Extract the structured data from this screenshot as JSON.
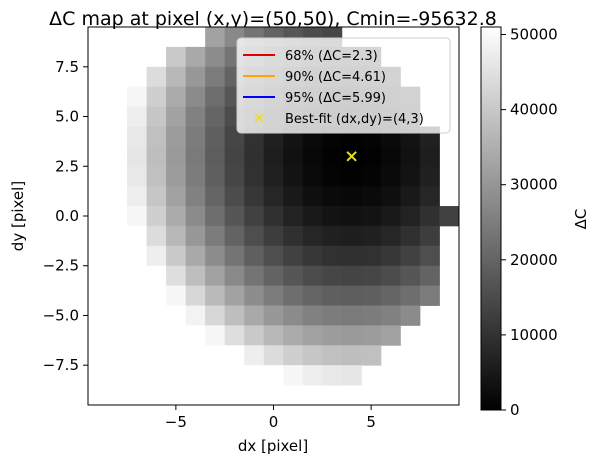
{
  "chart_data": {
    "type": "heatmap",
    "title": "ΔC map at pixel (x,y)=(50,50), Cmin=-95632.8",
    "xlabel": "dx [pixel]",
    "ylabel": "dy [pixel]",
    "xlim": [
      -9.5,
      9.5
    ],
    "ylim": [
      -9.5,
      9.5
    ],
    "x_ticks": [
      {
        "value": -5,
        "label": "−5"
      },
      {
        "value": 0,
        "label": "0"
      },
      {
        "value": 5,
        "label": "5"
      }
    ],
    "y_ticks": [
      {
        "value": 7.5,
        "label": "7.5"
      },
      {
        "value": 5.0,
        "label": "5.0"
      },
      {
        "value": 2.5,
        "label": "2.5"
      },
      {
        "value": 0.0,
        "label": "0.0"
      },
      {
        "value": -2.5,
        "label": "−2.5"
      },
      {
        "value": -5.0,
        "label": "−5.0"
      },
      {
        "value": -7.5,
        "label": "−7.5"
      }
    ],
    "colormap": "gray",
    "color_range": [
      0,
      51000
    ],
    "colorbar_label": "ΔC",
    "colorbar_ticks": [
      {
        "value": 0,
        "label": "0"
      },
      {
        "value": 10000,
        "label": "10000"
      },
      {
        "value": 20000,
        "label": "20000"
      },
      {
        "value": 30000,
        "label": "30000"
      },
      {
        "value": 40000,
        "label": "40000"
      },
      {
        "value": 50000,
        "label": "50000"
      }
    ],
    "grid": false,
    "legend_position": "upper-right",
    "best_fit": {
      "dx": 4,
      "dy": 3,
      "color": "#e8e020"
    },
    "legend": [
      {
        "label": "68% (ΔC=2.3)",
        "color": "#e00000",
        "kind": "line"
      },
      {
        "label": "90% (ΔC=4.61)",
        "color": "#ffa500",
        "kind": "line"
      },
      {
        "label": "95% (ΔC=5.99)",
        "color": "#0000ff",
        "kind": "line"
      },
      {
        "label": "Best-fit (dx,dy)=(4,3)",
        "color": "#e8e020",
        "kind": "marker"
      }
    ],
    "footprint": {
      "rows": [
        {
          "dy": 9,
          "dx": [
            -3,
            3
          ]
        },
        {
          "dy": 8,
          "dx": [
            -5,
            5
          ]
        },
        {
          "dy": 7,
          "dx": [
            -6,
            6
          ]
        },
        {
          "dy": 6,
          "dx": [
            -7,
            7
          ]
        },
        {
          "dy": 5,
          "dx": [
            -7,
            7
          ]
        },
        {
          "dy": 4,
          "dx": [
            -8,
            8
          ]
        },
        {
          "dy": 3,
          "dx": [
            -8,
            8
          ]
        },
        {
          "dy": 2,
          "dx": [
            -8,
            8
          ]
        },
        {
          "dy": 1,
          "dx": [
            -8,
            8
          ]
        },
        {
          "dy": 0,
          "dx": [
            -9,
            9
          ]
        },
        {
          "dy": -1,
          "dx": [
            -8,
            8
          ]
        },
        {
          "dy": -2,
          "dx": [
            -8,
            8
          ]
        },
        {
          "dy": -3,
          "dx": [
            -8,
            8
          ]
        },
        {
          "dy": -4,
          "dx": [
            -7,
            8
          ]
        },
        {
          "dy": -5,
          "dx": [
            -7,
            7
          ]
        },
        {
          "dy": -6,
          "dx": [
            -6,
            6
          ]
        },
        {
          "dy": -7,
          "dx": [
            -5,
            5
          ]
        },
        {
          "dy": -8,
          "dx": [
            -3,
            4
          ]
        }
      ],
      "model": "quadratic bowl centred at best-fit, ΔC ≈ 380·((dx−4)² + (dy−3)²)"
    }
  }
}
